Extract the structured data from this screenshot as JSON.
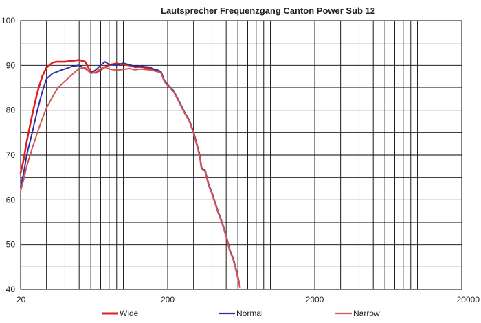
{
  "chart_data": {
    "type": "line",
    "title": "Lautsprecher Frequenzgang  Canton  Power Sub 12",
    "x_scale": "log",
    "xlim": [
      20,
      20000
    ],
    "ylim": [
      40,
      100
    ],
    "y_ticks": [
      "100",
      "90",
      "80",
      "70",
      "60",
      "50",
      "40"
    ],
    "y_tick_values": [
      100,
      90,
      80,
      70,
      60,
      50,
      40
    ],
    "x_ticks": [
      "20",
      "200",
      "2000",
      "20000"
    ],
    "x_tick_values": [
      20,
      200,
      2000,
      20000
    ],
    "grid": true,
    "legend_position": "bottom",
    "series": [
      {
        "name": "Wide",
        "color": "#e02020",
        "x": [
          20,
          21,
          22,
          24,
          26,
          28,
          30,
          33,
          35,
          38,
          40,
          45,
          50,
          55,
          60,
          65,
          70,
          75,
          80,
          90,
          100,
          110,
          120,
          130,
          140,
          150,
          160,
          170,
          180,
          190,
          200,
          220,
          240,
          260,
          280,
          300,
          310,
          320,
          330,
          340,
          360,
          380,
          400,
          420,
          440,
          460,
          480,
          500,
          530,
          560,
          590,
          620
        ],
        "y": [
          66,
          69,
          73,
          79,
          84,
          87.5,
          89.5,
          90.6,
          90.8,
          90.8,
          90.8,
          91.0,
          91.2,
          90.8,
          88.5,
          88.3,
          89,
          89.6,
          90.1,
          90.4,
          90.2,
          90.0,
          89.6,
          89.7,
          89.5,
          89.4,
          89.1,
          88.9,
          88.5,
          86.5,
          85.6,
          84.2,
          81.8,
          79.5,
          77.7,
          75.0,
          73.3,
          71.6,
          70.0,
          67.0,
          66.4,
          63.3,
          61.5,
          59.3,
          57.3,
          55.6,
          53.8,
          51.8,
          48.6,
          46.6,
          43.8,
          40.5
        ]
      },
      {
        "name": "Normal",
        "color": "#3030a0",
        "x": [
          20,
          21,
          22,
          24,
          26,
          28,
          30,
          33,
          35,
          38,
          40,
          45,
          50,
          55,
          60,
          65,
          70,
          75,
          80,
          90,
          100,
          110,
          120,
          130,
          140,
          150,
          160,
          170,
          180,
          190,
          200,
          220,
          240,
          260,
          280,
          300,
          310,
          320,
          330,
          340,
          360,
          380,
          400,
          420,
          440,
          460,
          480,
          500,
          530,
          560,
          590,
          620
        ],
        "y": [
          63,
          66,
          70,
          75,
          80,
          84,
          87,
          88.2,
          88.5,
          89,
          89.2,
          89.8,
          90,
          89.3,
          88.3,
          89,
          90,
          90.8,
          90.2,
          90.0,
          90.5,
          90.1,
          89.8,
          89.9,
          89.7,
          89.6,
          89.2,
          89.0,
          88.6,
          86.6,
          85.7,
          84.3,
          81.9,
          79.6,
          77.8,
          75.1,
          73.4,
          71.7,
          70.1,
          67.1,
          66.5,
          63.4,
          61.6,
          59.4,
          57.4,
          55.7,
          53.9,
          51.9,
          48.7,
          46.7,
          43.9,
          40.5
        ]
      },
      {
        "name": "Narrow",
        "color": "#d05858",
        "x": [
          20,
          21,
          22,
          24,
          26,
          28,
          30,
          33,
          35,
          38,
          40,
          45,
          50,
          55,
          60,
          65,
          70,
          75,
          80,
          90,
          100,
          110,
          120,
          130,
          140,
          150,
          160,
          170,
          180,
          190,
          200,
          220,
          240,
          260,
          280,
          300,
          310,
          320,
          330,
          340,
          360,
          380,
          400,
          420,
          440,
          460,
          480,
          500,
          530,
          560,
          590,
          620
        ],
        "y": [
          62,
          64.5,
          67.5,
          71.5,
          75,
          78,
          80.5,
          83,
          84.5,
          85.8,
          86.5,
          88,
          89.3,
          89.5,
          88.2,
          88.5,
          89.3,
          89.6,
          89.2,
          88.9,
          89.1,
          89.3,
          89.0,
          89.2,
          89.1,
          89.0,
          88.8,
          88.6,
          88.3,
          86.4,
          85.5,
          84.1,
          81.7,
          79.4,
          77.6,
          74.9,
          73.2,
          71.5,
          69.9,
          66.9,
          66.3,
          63.2,
          61.4,
          59.2,
          57.2,
          55.5,
          53.7,
          51.7,
          48.5,
          46.5,
          43.7,
          40.5
        ]
      }
    ]
  }
}
